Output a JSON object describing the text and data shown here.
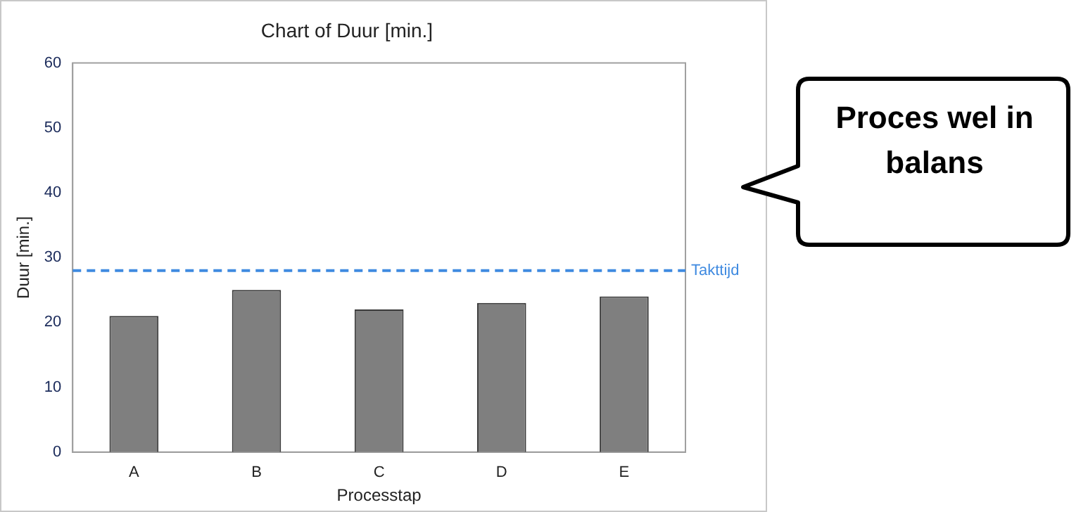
{
  "chart_data": {
    "type": "bar",
    "title": "Chart of Duur [min.]",
    "xlabel": "Processtap",
    "ylabel": "Duur [min.]",
    "categories": [
      "A",
      "B",
      "C",
      "D",
      "E"
    ],
    "values": [
      21,
      25,
      22,
      23,
      24
    ],
    "color": "#7f7f7f",
    "ylim": [
      0,
      60
    ],
    "yticks": [
      0,
      10,
      20,
      30,
      40,
      50,
      60
    ],
    "grid": false,
    "legend": false,
    "ref_lines": [
      {
        "axis": "y",
        "value": 28,
        "label": "Takttijd",
        "color": "#3f8ae0",
        "line_style": "dashed"
      }
    ],
    "annotations": [
      "Proces wel in balans"
    ]
  }
}
